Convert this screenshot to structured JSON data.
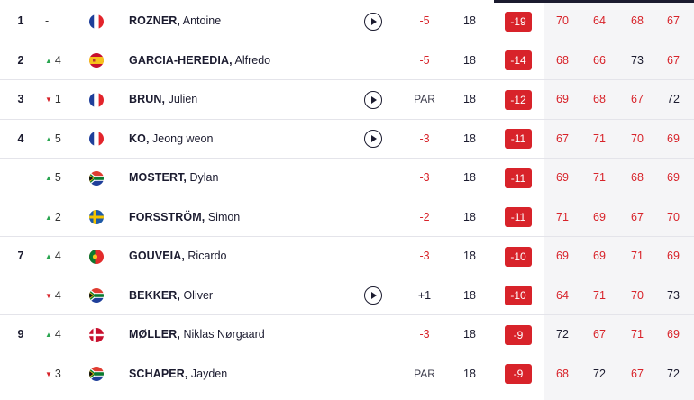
{
  "leaderboard": {
    "rows": [
      {
        "pos": "1",
        "move_dir": "same",
        "move_val": "-",
        "flag": "fr",
        "last": "ROZNER,",
        "first": "Antoine",
        "video": true,
        "today": "-5",
        "today_class": "under",
        "thru": "18",
        "total": "-19",
        "rounds": [
          {
            "v": "70",
            "c": "under"
          },
          {
            "v": "64",
            "c": "under"
          },
          {
            "v": "68",
            "c": "under"
          },
          {
            "v": "67",
            "c": "under"
          }
        ],
        "divider": true
      },
      {
        "pos": "2",
        "move_dir": "up",
        "move_val": "4",
        "flag": "es",
        "last": "GARCIA-HEREDIA,",
        "first": "Alfredo",
        "video": false,
        "today": "-5",
        "today_class": "under",
        "thru": "18",
        "total": "-14",
        "rounds": [
          {
            "v": "68",
            "c": "under"
          },
          {
            "v": "66",
            "c": "under"
          },
          {
            "v": "73",
            "c": "even"
          },
          {
            "v": "67",
            "c": "under"
          }
        ],
        "divider": true
      },
      {
        "pos": "3",
        "move_dir": "down",
        "move_val": "1",
        "flag": "fr",
        "last": "BRUN,",
        "first": "Julien",
        "video": true,
        "today": "PAR",
        "today_class": "par",
        "thru": "18",
        "total": "-12",
        "rounds": [
          {
            "v": "69",
            "c": "under"
          },
          {
            "v": "68",
            "c": "under"
          },
          {
            "v": "67",
            "c": "under"
          },
          {
            "v": "72",
            "c": "even"
          }
        ],
        "divider": true
      },
      {
        "pos": "4",
        "move_dir": "up",
        "move_val": "5",
        "flag": "fr",
        "last": "KO,",
        "first": "Jeong weon",
        "video": true,
        "today": "-3",
        "today_class": "under",
        "thru": "18",
        "total": "-11",
        "rounds": [
          {
            "v": "67",
            "c": "under"
          },
          {
            "v": "71",
            "c": "under"
          },
          {
            "v": "70",
            "c": "under"
          },
          {
            "v": "69",
            "c": "under"
          }
        ],
        "divider": true
      },
      {
        "pos": "",
        "move_dir": "up",
        "move_val": "5",
        "flag": "za",
        "last": "MOSTERT,",
        "first": "Dylan",
        "video": false,
        "today": "-3",
        "today_class": "under",
        "thru": "18",
        "total": "-11",
        "rounds": [
          {
            "v": "69",
            "c": "under"
          },
          {
            "v": "71",
            "c": "under"
          },
          {
            "v": "68",
            "c": "under"
          },
          {
            "v": "69",
            "c": "under"
          }
        ],
        "divider": false
      },
      {
        "pos": "",
        "move_dir": "up",
        "move_val": "2",
        "flag": "se",
        "last": "FORSSTRÖM,",
        "first": "Simon",
        "video": false,
        "today": "-2",
        "today_class": "under",
        "thru": "18",
        "total": "-11",
        "rounds": [
          {
            "v": "71",
            "c": "under"
          },
          {
            "v": "69",
            "c": "under"
          },
          {
            "v": "67",
            "c": "under"
          },
          {
            "v": "70",
            "c": "under"
          }
        ],
        "divider": true
      },
      {
        "pos": "7",
        "move_dir": "up",
        "move_val": "4",
        "flag": "pt",
        "last": "GOUVEIA,",
        "first": "Ricardo",
        "video": false,
        "today": "-3",
        "today_class": "under",
        "thru": "18",
        "total": "-10",
        "rounds": [
          {
            "v": "69",
            "c": "under"
          },
          {
            "v": "69",
            "c": "under"
          },
          {
            "v": "71",
            "c": "under"
          },
          {
            "v": "69",
            "c": "under"
          }
        ],
        "divider": false
      },
      {
        "pos": "",
        "move_dir": "down",
        "move_val": "4",
        "flag": "za",
        "last": "BEKKER,",
        "first": "Oliver",
        "video": true,
        "today": "+1",
        "today_class": "over",
        "thru": "18",
        "total": "-10",
        "rounds": [
          {
            "v": "64",
            "c": "under"
          },
          {
            "v": "71",
            "c": "under"
          },
          {
            "v": "70",
            "c": "under"
          },
          {
            "v": "73",
            "c": "even"
          }
        ],
        "divider": true
      },
      {
        "pos": "9",
        "move_dir": "up",
        "move_val": "4",
        "flag": "dk",
        "last": "MØLLER,",
        "first": "Niklas Nørgaard",
        "video": false,
        "today": "-3",
        "today_class": "under",
        "thru": "18",
        "total": "-9",
        "rounds": [
          {
            "v": "72",
            "c": "even"
          },
          {
            "v": "67",
            "c": "under"
          },
          {
            "v": "71",
            "c": "under"
          },
          {
            "v": "69",
            "c": "under"
          }
        ],
        "divider": false
      },
      {
        "pos": "",
        "move_dir": "down",
        "move_val": "3",
        "flag": "za",
        "last": "SCHAPER,",
        "first": "Jayden",
        "video": false,
        "today": "PAR",
        "today_class": "par",
        "thru": "18",
        "total": "-9",
        "rounds": [
          {
            "v": "68",
            "c": "under"
          },
          {
            "v": "72",
            "c": "even"
          },
          {
            "v": "67",
            "c": "under"
          },
          {
            "v": "72",
            "c": "even"
          }
        ],
        "divider": false
      }
    ]
  },
  "colors": {
    "under_par": "#d8232a",
    "move_up": "#2aa551",
    "move_down": "#d8232a",
    "total_badge": "#d8232a"
  },
  "icons": {
    "video": "play-icon",
    "up": "arrow-up-icon",
    "down": "arrow-down-icon"
  }
}
